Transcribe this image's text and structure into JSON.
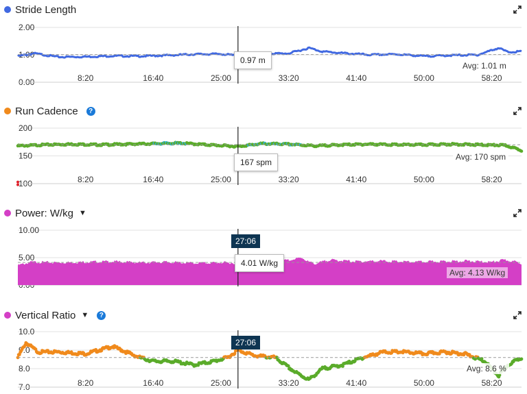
{
  "colors": {
    "stride": "#4169e1",
    "cadence_orange": "#f08a1c",
    "cadence_green": "#5aab2a",
    "cadence_blue": "#28b4e6",
    "power": "#d43fc6",
    "ratio_orange": "#f08a1c",
    "ratio_green": "#5aab2a",
    "cursor": "#222222",
    "time_badge_bg": "#0e3552",
    "help_blue": "#1a7ad9"
  },
  "icons": {
    "expand": "expand-arrows-icon",
    "help": "question-circle-icon",
    "dropdown": "caret-down-icon"
  },
  "x_axis": {
    "ticks": [
      "8:20",
      "16:40",
      "25:00",
      "33:20",
      "41:40",
      "50:00",
      "58:20"
    ],
    "tick_seconds": [
      500,
      1000,
      1500,
      2000,
      2500,
      3000,
      3500
    ],
    "cursor_time": "27:06",
    "cursor_seconds": 1626,
    "range_seconds": [
      0,
      3720
    ]
  },
  "charts": [
    {
      "id": "stride",
      "title": "Stride Length",
      "has_help": false,
      "has_dropdown": false,
      "y_ticks": [
        "2.00",
        "1.00",
        "0.00"
      ],
      "tooltip": "0.97 m",
      "avg_label": "Avg: 1.01 m"
    },
    {
      "id": "cadence",
      "title": "Run Cadence",
      "has_help": true,
      "has_dropdown": false,
      "y_ticks": [
        "200",
        "150",
        "100"
      ],
      "tooltip": "167 spm",
      "avg_label": "Avg: 170 spm"
    },
    {
      "id": "power",
      "title": "Power: W/kg",
      "has_help": false,
      "has_dropdown": true,
      "y_ticks": [
        "10.00",
        "5.00",
        "0.00"
      ],
      "tooltip": "4.01 W/kg",
      "avg_label": "Avg: 4.13 W/kg",
      "time_badge": "27:06"
    },
    {
      "id": "ratio",
      "title": "Vertical Ratio",
      "has_help": true,
      "has_dropdown": true,
      "y_ticks": [
        "10.0",
        "9.0",
        "8.0",
        "7.0"
      ],
      "tooltip": "",
      "avg_label": "Avg: 8.6 %",
      "time_badge": "27:06"
    }
  ],
  "chart_data": [
    {
      "type": "line",
      "title": "Stride Length",
      "ylabel": "m",
      "ylim": [
        0,
        2
      ],
      "average": 1.01,
      "cursor_value": 0.97,
      "x": [
        0,
        120,
        300,
        500,
        700,
        900,
        1100,
        1300,
        1500,
        1626,
        1800,
        2000,
        2150,
        2250,
        2400,
        2600,
        2800,
        3000,
        3200,
        3400,
        3550,
        3620,
        3720
      ],
      "y": [
        0.95,
        1.05,
        0.92,
        0.93,
        0.96,
        0.95,
        0.98,
        1.02,
        1.03,
        0.97,
        1.04,
        1.05,
        1.25,
        1.12,
        1.06,
        1.0,
        1.02,
        0.95,
        0.98,
        1.0,
        1.25,
        1.1,
        1.12
      ]
    },
    {
      "type": "scatter",
      "title": "Run Cadence",
      "ylabel": "spm",
      "ylim": [
        100,
        200
      ],
      "average": 170,
      "cursor_value": 167,
      "x": [
        0,
        200,
        400,
        600,
        800,
        1000,
        1200,
        1400,
        1626,
        1800,
        2000,
        2200,
        2400,
        2600,
        2800,
        3000,
        3200,
        3400,
        3600,
        3720
      ],
      "y": [
        168,
        170,
        171,
        170,
        171,
        172,
        173,
        170,
        167,
        172,
        171,
        168,
        170,
        171,
        170,
        170,
        171,
        170,
        169,
        160
      ]
    },
    {
      "type": "area",
      "title": "Power: W/kg",
      "ylabel": "W/kg",
      "ylim": [
        0,
        10
      ],
      "average": 4.13,
      "cursor_value": 4.01,
      "x": [
        0,
        100,
        300,
        500,
        700,
        900,
        1100,
        1300,
        1500,
        1626,
        1800,
        2000,
        2100,
        2150,
        2200,
        2300,
        2500,
        2700,
        2900,
        3100,
        3300,
        3500,
        3600,
        3720
      ],
      "y": [
        3.6,
        4.2,
        4.1,
        4.2,
        4.3,
        4.1,
        4.2,
        4.0,
        4.1,
        4.01,
        4.3,
        4.5,
        5.0,
        4.2,
        3.9,
        4.6,
        4.3,
        4.4,
        4.2,
        4.3,
        4.4,
        4.2,
        4.6,
        4.0
      ]
    },
    {
      "type": "scatter",
      "title": "Vertical Ratio",
      "ylabel": "%",
      "ylim": [
        7,
        10
      ],
      "average": 8.6,
      "x": [
        0,
        60,
        150,
        300,
        500,
        700,
        900,
        1000,
        1150,
        1300,
        1450,
        1550,
        1626,
        1750,
        1900,
        2050,
        2150,
        2250,
        2400,
        2550,
        2700,
        2850,
        3000,
        3150,
        3300,
        3450,
        3550,
        3620,
        3720
      ],
      "y": [
        8.6,
        9.4,
        8.9,
        8.9,
        8.8,
        9.2,
        8.6,
        8.4,
        8.4,
        8.2,
        8.4,
        8.6,
        9.0,
        8.7,
        8.6,
        7.8,
        7.4,
        8.0,
        8.2,
        8.6,
        8.9,
        8.9,
        8.8,
        8.9,
        8.8,
        8.4,
        7.6,
        8.2,
        8.6
      ]
    }
  ]
}
